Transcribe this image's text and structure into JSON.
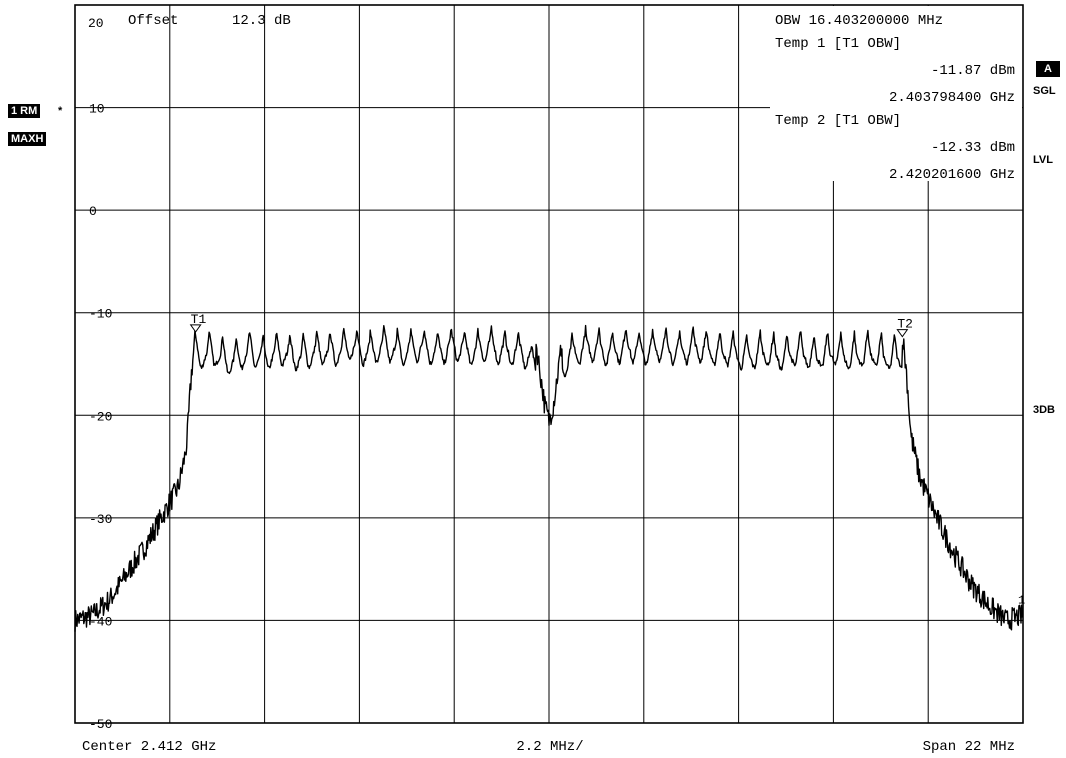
{
  "left_badges": {
    "trace_mode": "1 RM",
    "trace_star": "*",
    "detector": "MAXH"
  },
  "right_badges": {
    "a": "A",
    "sgl": "SGL",
    "lvl": "LVL",
    "db3": "3DB"
  },
  "top_left": {
    "ref": "20",
    "offset_label": "Offset",
    "offset_value": "12.3 dB"
  },
  "info_box": {
    "obw": "OBW 16.403200000 MHz",
    "temp1": "Temp 1 [T1 OBW]",
    "temp1_level": "-11.87 dBm",
    "temp1_freq": "2.403798400 GHz",
    "temp2": "Temp 2 [T1 OBW]",
    "temp2_level": "-12.33 dBm",
    "temp2_freq": "2.420201600 GHz"
  },
  "bottom": {
    "center": "Center  2.412 GHz",
    "div": "2.2 MHz/",
    "span": "Span  22 MHz"
  },
  "chart_data": {
    "type": "line",
    "x_unit": "GHz",
    "y_unit": "dBm",
    "xlim": [
      2.401,
      2.423
    ],
    "ylim": [
      -50,
      20
    ],
    "y_ticks": [
      "10",
      "0",
      "-10",
      "-20",
      "-30",
      "-40",
      "-50"
    ],
    "grid": true,
    "markers": [
      {
        "label": "T1",
        "x": 2.4038,
        "y": -11.87
      },
      {
        "label": "T2",
        "x": 2.4202,
        "y": -12.33
      },
      {
        "label": "1",
        "x": 2.423,
        "y": -39.5
      }
    ],
    "series": [
      {
        "x": [
          2.401,
          2.4014,
          2.4018,
          2.4022,
          2.4026,
          2.403,
          2.4034,
          2.40355,
          2.4036,
          2.4037,
          2.4038,
          2.4042,
          2.4046,
          2.405,
          2.4054,
          2.4058,
          2.4062,
          2.4066,
          2.407,
          2.4074,
          2.4078,
          2.4082,
          2.4086,
          2.409,
          2.4094,
          2.4098,
          2.4102,
          2.4106,
          2.411,
          2.4114,
          2.4117,
          2.4119,
          2.412,
          2.4121,
          2.4123,
          2.4126,
          2.413,
          2.4134,
          2.4138,
          2.4142,
          2.4146,
          2.415,
          2.4154,
          2.4158,
          2.4162,
          2.4166,
          2.417,
          2.4174,
          2.4178,
          2.4182,
          2.4186,
          2.419,
          2.4194,
          2.4198,
          2.4202,
          2.4203,
          2.4204,
          2.4206,
          2.421,
          2.4214,
          2.4218,
          2.4222,
          2.4226,
          2.423
        ],
        "y": [
          -40,
          -39.5,
          -38,
          -35.5,
          -33,
          -30,
          -27,
          -24,
          -22.5,
          -16,
          -12,
          -11.5,
          -12.5,
          -11.5,
          -12,
          -11.5,
          -12,
          -11.5,
          -11.5,
          -11,
          -11.5,
          -11,
          -11.5,
          -11,
          -11.5,
          -11,
          -11.5,
          -11,
          -11.5,
          -11.5,
          -13,
          -19,
          -20.5,
          -19,
          -13,
          -11.5,
          -11,
          -11.5,
          -11,
          -11.5,
          -11,
          -11.5,
          -11,
          -11.5,
          -11.5,
          -12,
          -11.5,
          -12,
          -11.5,
          -12,
          -11.5,
          -12,
          -11.5,
          -12,
          -12,
          -16,
          -22,
          -26,
          -30,
          -33.5,
          -36.5,
          -38.5,
          -40,
          -39.5
        ]
      }
    ]
  }
}
